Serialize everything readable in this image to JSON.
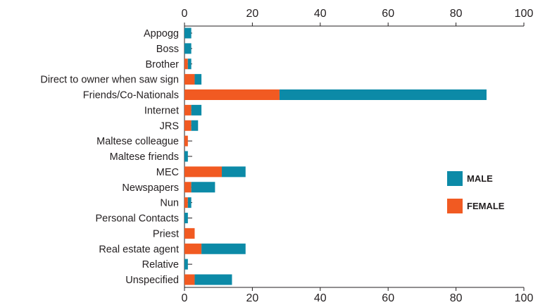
{
  "chart_data": {
    "type": "bar",
    "orientation": "horizontal",
    "stacked": true,
    "categories": [
      "Appogg",
      "Boss",
      "Brother",
      "Direct to owner when saw sign",
      "Friends/Co-Nationals",
      "Internet",
      "JRS",
      "Maltese colleague",
      "Maltese friends",
      "MEC",
      "Newspapers",
      "Nun",
      "Personal Contacts",
      "Priest",
      "Real estate agent",
      "Relative",
      "Unspecified"
    ],
    "series": [
      {
        "name": "FEMALE",
        "color": "#f15a22",
        "values": [
          0,
          0,
          1,
          3,
          28,
          2,
          2,
          1,
          0,
          11,
          2,
          1,
          0,
          3,
          5,
          0,
          3
        ]
      },
      {
        "name": "MALE",
        "color": "#0c8aa7",
        "values": [
          2,
          2,
          1,
          2,
          61,
          3,
          2,
          0,
          1,
          7,
          7,
          1,
          1,
          0,
          13,
          1,
          11
        ]
      }
    ],
    "xlim": [
      0,
      100
    ],
    "xticks": [
      0,
      20,
      40,
      60,
      80,
      100
    ],
    "xaxis_position": "top and bottom",
    "grid": false,
    "legend": {
      "placement": "right",
      "entries": [
        {
          "label": "MALE",
          "color": "#0c8aa7"
        },
        {
          "label": "FEMALE",
          "color": "#f15a22"
        }
      ]
    },
    "title": "",
    "xlabel": "",
    "ylabel": ""
  }
}
